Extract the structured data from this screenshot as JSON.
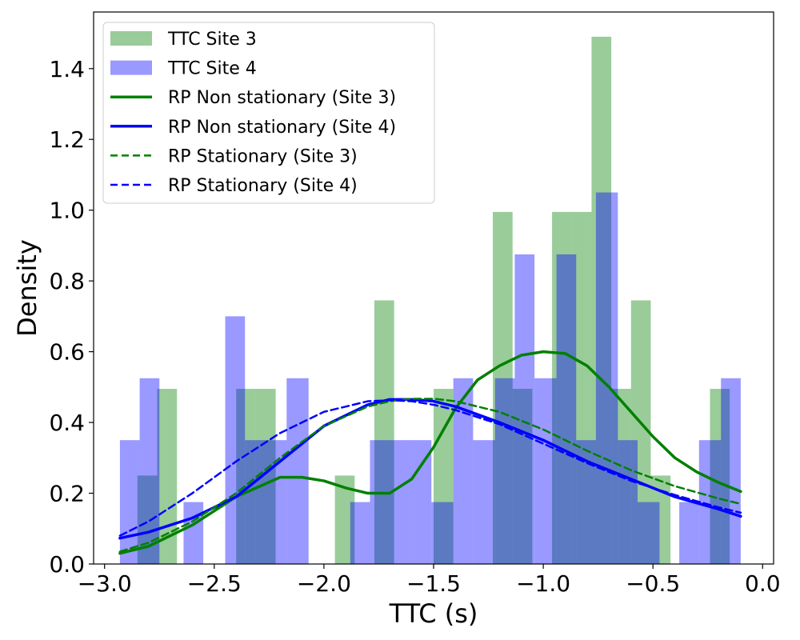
{
  "chart_data": {
    "type": "histogram+line",
    "title": "",
    "xlabel": "TTC (s)",
    "ylabel": "Density",
    "xlim": [
      -3.05,
      0.05
    ],
    "ylim": [
      0,
      1.56
    ],
    "xticks": [
      -3.0,
      -2.5,
      -2.0,
      -1.5,
      -1.0,
      -0.5,
      0.0
    ],
    "xtick_labels": [
      "−3.0",
      "−2.5",
      "−2.0",
      "−1.5",
      "−1.0",
      "−0.5",
      "0.0"
    ],
    "yticks": [
      0.0,
      0.2,
      0.4,
      0.6,
      0.8,
      1.0,
      1.2,
      1.4
    ],
    "ytick_labels": [
      "0.0",
      "0.2",
      "0.4",
      "0.6",
      "0.8",
      "1.0",
      "1.2",
      "1.4"
    ],
    "legend_position": "top-left",
    "histograms": [
      {
        "name": "TTC Site 3",
        "color": "#008000",
        "opacity": 0.4,
        "bins": [
          {
            "x0": -2.85,
            "x1": -2.76,
            "y": 0.25
          },
          {
            "x0": -2.76,
            "x1": -2.67,
            "y": 0.495
          },
          {
            "x0": -2.4,
            "x1": -2.31,
            "y": 0.495
          },
          {
            "x0": -2.31,
            "x1": -2.22,
            "y": 0.495
          },
          {
            "x0": -1.95,
            "x1": -1.86,
            "y": 0.25
          },
          {
            "x0": -1.77,
            "x1": -1.68,
            "y": 0.745
          },
          {
            "x0": -1.5,
            "x1": -1.41,
            "y": 0.495
          },
          {
            "x0": -1.23,
            "x1": -1.14,
            "y": 0.995
          },
          {
            "x0": -1.14,
            "x1": -1.05,
            "y": 0.495
          },
          {
            "x0": -0.96,
            "x1": -0.87,
            "y": 0.995
          },
          {
            "x0": -0.87,
            "x1": -0.78,
            "y": 0.995
          },
          {
            "x0": -0.78,
            "x1": -0.69,
            "y": 1.49
          },
          {
            "x0": -0.69,
            "x1": -0.6,
            "y": 0.495
          },
          {
            "x0": -0.6,
            "x1": -0.51,
            "y": 0.745
          },
          {
            "x0": -0.51,
            "x1": -0.42,
            "y": 0.25
          },
          {
            "x0": -0.24,
            "x1": -0.15,
            "y": 0.495
          }
        ]
      },
      {
        "name": "TTC Site 4",
        "color": "#0000ff",
        "opacity": 0.4,
        "bins": [
          {
            "x0": -2.93,
            "x1": -2.84,
            "y": 0.35
          },
          {
            "x0": -2.84,
            "x1": -2.75,
            "y": 0.525
          },
          {
            "x0": -2.64,
            "x1": -2.55,
            "y": 0.175
          },
          {
            "x0": -2.45,
            "x1": -2.36,
            "y": 0.7
          },
          {
            "x0": -2.36,
            "x1": -2.26,
            "y": 0.35
          },
          {
            "x0": -2.26,
            "x1": -2.17,
            "y": 0.35
          },
          {
            "x0": -2.17,
            "x1": -2.07,
            "y": 0.525
          },
          {
            "x0": -1.88,
            "x1": -1.79,
            "y": 0.175
          },
          {
            "x0": -1.79,
            "x1": -1.69,
            "y": 0.35
          },
          {
            "x0": -1.69,
            "x1": -1.6,
            "y": 0.35
          },
          {
            "x0": -1.6,
            "x1": -1.51,
            "y": 0.35
          },
          {
            "x0": -1.51,
            "x1": -1.41,
            "y": 0.175
          },
          {
            "x0": -1.41,
            "x1": -1.32,
            "y": 0.525
          },
          {
            "x0": -1.32,
            "x1": -1.22,
            "y": 0.35
          },
          {
            "x0": -1.22,
            "x1": -1.13,
            "y": 0.525
          },
          {
            "x0": -1.13,
            "x1": -1.04,
            "y": 0.875
          },
          {
            "x0": -1.04,
            "x1": -0.94,
            "y": 0.525
          },
          {
            "x0": -0.94,
            "x1": -0.85,
            "y": 0.875
          },
          {
            "x0": -0.85,
            "x1": -0.76,
            "y": 0.35
          },
          {
            "x0": -0.76,
            "x1": -0.66,
            "y": 1.05
          },
          {
            "x0": -0.66,
            "x1": -0.57,
            "y": 0.35
          },
          {
            "x0": -0.57,
            "x1": -0.47,
            "y": 0.175
          },
          {
            "x0": -0.38,
            "x1": -0.29,
            "y": 0.175
          },
          {
            "x0": -0.29,
            "x1": -0.19,
            "y": 0.35
          },
          {
            "x0": -0.19,
            "x1": -0.1,
            "y": 0.525
          }
        ]
      }
    ],
    "lines": [
      {
        "name": "RP Non stationary (Site 3)",
        "color": "#008000",
        "style": "solid",
        "x": [
          -2.93,
          -2.8,
          -2.6,
          -2.4,
          -2.2,
          -2.1,
          -2.0,
          -1.9,
          -1.8,
          -1.7,
          -1.6,
          -1.5,
          -1.4,
          -1.3,
          -1.2,
          -1.1,
          -1.0,
          -0.9,
          -0.8,
          -0.7,
          -0.6,
          -0.5,
          -0.4,
          -0.3,
          -0.2,
          -0.1
        ],
        "y": [
          0.03,
          0.05,
          0.11,
          0.19,
          0.245,
          0.245,
          0.235,
          0.215,
          0.2,
          0.2,
          0.24,
          0.33,
          0.44,
          0.52,
          0.56,
          0.59,
          0.6,
          0.595,
          0.56,
          0.5,
          0.43,
          0.36,
          0.3,
          0.26,
          0.23,
          0.205
        ]
      },
      {
        "name": "RP Non stationary (Site 4)",
        "color": "#0000ff",
        "style": "solid",
        "x": [
          -2.93,
          -2.8,
          -2.6,
          -2.4,
          -2.2,
          -2.0,
          -1.8,
          -1.7,
          -1.6,
          -1.5,
          -1.4,
          -1.2,
          -1.0,
          -0.8,
          -0.6,
          -0.4,
          -0.2,
          -0.1
        ],
        "y": [
          0.073,
          0.09,
          0.13,
          0.19,
          0.29,
          0.39,
          0.45,
          0.465,
          0.465,
          0.46,
          0.445,
          0.4,
          0.35,
          0.29,
          0.24,
          0.19,
          0.155,
          0.135
        ]
      },
      {
        "name": "RP Stationary (Site 3)",
        "color": "#008000",
        "style": "dashed",
        "x": [
          -2.93,
          -2.8,
          -2.6,
          -2.4,
          -2.2,
          -2.0,
          -1.8,
          -1.7,
          -1.6,
          -1.5,
          -1.4,
          -1.2,
          -1.0,
          -0.8,
          -0.6,
          -0.4,
          -0.2,
          -0.1
        ],
        "y": [
          0.035,
          0.06,
          0.12,
          0.2,
          0.3,
          0.39,
          0.445,
          0.46,
          0.467,
          0.467,
          0.46,
          0.43,
          0.38,
          0.32,
          0.265,
          0.22,
          0.185,
          0.17
        ]
      },
      {
        "name": "RP Stationary (Site 4)",
        "color": "#0000ff",
        "style": "dashed",
        "x": [
          -2.93,
          -2.8,
          -2.6,
          -2.4,
          -2.2,
          -2.0,
          -1.8,
          -1.7,
          -1.6,
          -1.5,
          -1.4,
          -1.2,
          -1.0,
          -0.8,
          -0.6,
          -0.4,
          -0.2,
          -0.1
        ],
        "y": [
          0.08,
          0.12,
          0.2,
          0.29,
          0.37,
          0.43,
          0.46,
          0.463,
          0.46,
          0.45,
          0.435,
          0.395,
          0.34,
          0.285,
          0.235,
          0.195,
          0.16,
          0.145
        ]
      }
    ]
  }
}
